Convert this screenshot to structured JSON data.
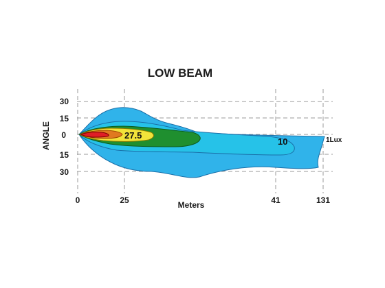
{
  "chart_data": {
    "type": "area",
    "title": "LOW BEAM",
    "xlabel": "Meters",
    "ylabel": "ANGLE",
    "x_ticks": [
      "0",
      "25",
      "41",
      "131"
    ],
    "y_ticks": [
      "30",
      "15",
      "0",
      "15",
      "30"
    ],
    "grid": true,
    "contour_levels": [
      {
        "label": "1Lux",
        "color": "#30b3ea"
      },
      {
        "label": "10",
        "color": "#26c2e8"
      },
      {
        "label": "",
        "color": "#1f8f2f"
      },
      {
        "label": "27.5",
        "color": "#f2e33a"
      },
      {
        "label": "",
        "color": "#e07a20"
      },
      {
        "label": "",
        "color": "#e01e26"
      }
    ]
  }
}
